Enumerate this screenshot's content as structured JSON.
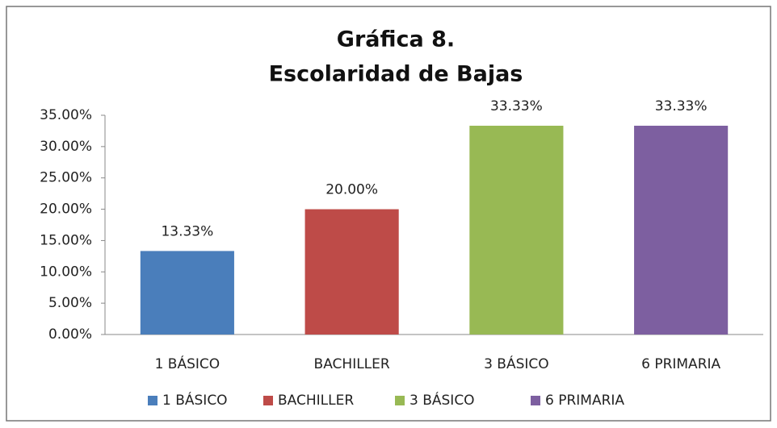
{
  "chart_data": {
    "type": "bar",
    "title": [
      "Gráfica 8.",
      "Escolaridad de Bajas"
    ],
    "categories": [
      "1 BÁSICO",
      "BACHILLER",
      "3 BÁSICO",
      "6 PRIMARIA"
    ],
    "values": [
      13.33,
      20,
      33.33,
      33.33
    ],
    "value_labels": [
      "13.33%",
      "20.00%",
      "33.33%",
      "33.33%"
    ],
    "colors": [
      "#4a7ebb",
      "#be4b48",
      "#98b954",
      "#7d5fa0"
    ],
    "ylim": [
      0,
      35
    ],
    "yticks": [
      {
        "value": 0,
        "label": "0.00%"
      },
      {
        "value": 5,
        "label": "5.00%"
      },
      {
        "value": 10,
        "label": "10.00%"
      },
      {
        "value": 15,
        "label": "15.00%"
      },
      {
        "value": 20,
        "label": "20.00%"
      },
      {
        "value": 25,
        "label": "25.00%"
      },
      {
        "value": 30,
        "label": "30.00%"
      },
      {
        "value": 35,
        "label": "35.00%"
      }
    ],
    "grid": false,
    "legend": "bottom"
  }
}
